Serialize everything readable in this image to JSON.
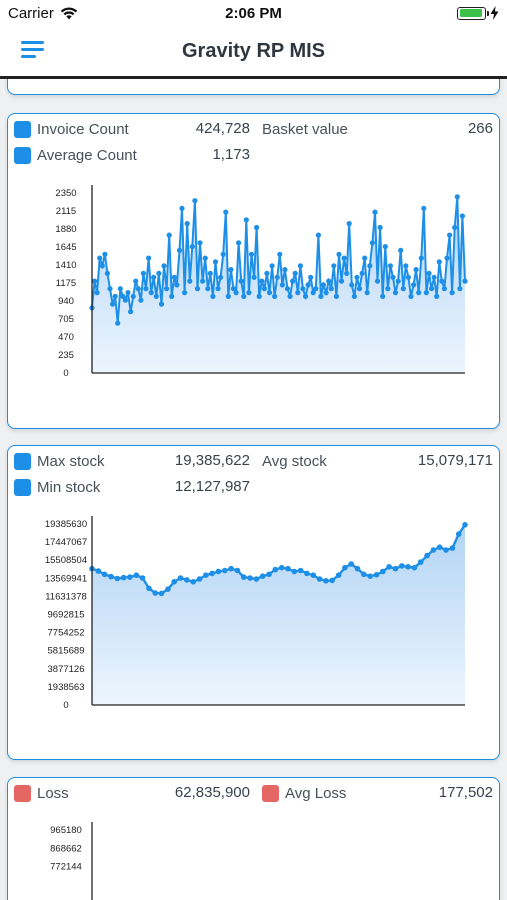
{
  "status_bar": {
    "carrier": "Carrier",
    "time": "2:06 PM"
  },
  "nav": {
    "title": "Gravity RP MIS"
  },
  "colors": {
    "accent": "#1e8fe6",
    "loss": "#e46763",
    "chart_fill": "#d3e6f8"
  },
  "cards": [
    {
      "metrics": [
        {
          "label": "Invoice Count",
          "value": "424,728",
          "color": "#1e8fe6"
        },
        {
          "label": "Average Count",
          "value": "1,173",
          "color": "#1e8fe6"
        }
      ],
      "side_metric": {
        "label": "Basket value",
        "value": "266"
      },
      "chart_data": {
        "type": "area",
        "yticks": [
          "2350",
          "2115",
          "1880",
          "1645",
          "1410",
          "1175",
          "940",
          "705",
          "470",
          "235",
          "0"
        ],
        "ylim": [
          0,
          2350
        ],
        "values": [
          850,
          1200,
          1050,
          1500,
          1400,
          1550,
          1300,
          1100,
          900,
          1000,
          650,
          1100,
          1000,
          950,
          1050,
          800,
          1000,
          1200,
          1100,
          950,
          1300,
          1100,
          1500,
          1050,
          1250,
          1000,
          1300,
          900,
          1400,
          1100,
          1800,
          1000,
          1250,
          1150,
          1600,
          2150,
          1050,
          1950,
          1200,
          1650,
          2250,
          1100,
          1700,
          1200,
          1500,
          1100,
          1300,
          1000,
          1450,
          1100,
          1250,
          1550,
          2100,
          1000,
          1350,
          1100,
          1050,
          1700,
          1200,
          1000,
          2000,
          1050,
          1550,
          1250,
          1900,
          1000,
          1200,
          1100,
          1300,
          1050,
          1400,
          1000,
          1250,
          1550,
          1150,
          1350,
          1100,
          1000,
          1200,
          1300,
          1050,
          1400,
          1100,
          1000,
          1150,
          1250,
          1050,
          1100,
          1800,
          1000,
          1150,
          1050,
          1200,
          1100,
          1400,
          1000,
          1550,
          1200,
          1500,
          1300,
          1950,
          1150,
          1000,
          1250,
          1100,
          1300,
          1500,
          1050,
          1400,
          1700,
          2100,
          1200,
          1900,
          1000,
          1650,
          1100,
          1400,
          1250,
          1050,
          1200,
          1600,
          1100,
          1400,
          1250,
          1000,
          1150,
          1350,
          1050,
          1500,
          2150,
          1050,
          1300,
          1100,
          1250,
          1000,
          1450,
          1200,
          1100,
          1500,
          1800,
          1050,
          1900,
          2300,
          1100,
          2050,
          1200
        ]
      }
    },
    {
      "metrics": [
        {
          "label": "Max stock",
          "value": "19,385,622",
          "color": "#1e8fe6"
        },
        {
          "label": "Min stock",
          "value": "12,127,987",
          "color": "#1e8fe6"
        }
      ],
      "side_metric": {
        "label": "Avg stock",
        "value": "15,079,171"
      },
      "chart_data": {
        "type": "area",
        "yticks": [
          "19385630",
          "17447067",
          "15508504",
          "13569941",
          "11631378",
          "9692815",
          "7754252",
          "5815689",
          "3877126",
          "1938563",
          "0"
        ],
        "ylim": [
          0,
          19385630
        ],
        "values": [
          14600000,
          14350000,
          14000000,
          13750000,
          13550000,
          13650000,
          13700000,
          13900000,
          13600000,
          12500000,
          12000000,
          11950000,
          12400000,
          13200000,
          13600000,
          13400000,
          13200000,
          13500000,
          13900000,
          14100000,
          14300000,
          14400000,
          14600000,
          14400000,
          13700000,
          13600000,
          13500000,
          13800000,
          14000000,
          14500000,
          14700000,
          14600000,
          14300000,
          14400000,
          14100000,
          13900000,
          13500000,
          13300000,
          13350000,
          13900000,
          14700000,
          15100000,
          14600000,
          14000000,
          13800000,
          13950000,
          14300000,
          14800000,
          14600000,
          14900000,
          14800000,
          14700000,
          15300000,
          16000000,
          16600000,
          16900000,
          16600000,
          16800000,
          18300000,
          19300000
        ]
      }
    },
    {
      "metrics": [
        {
          "label": "Loss",
          "value": "62,835,900",
          "color": "#e46763"
        }
      ],
      "side_metric": {
        "label": "Avg Loss",
        "value": "177,502",
        "color": "#e46763"
      },
      "chart_data": {
        "type": "area",
        "yticks": [
          "965180",
          "868662",
          "772144"
        ],
        "ylim": [
          0,
          965180
        ],
        "values": []
      }
    }
  ]
}
